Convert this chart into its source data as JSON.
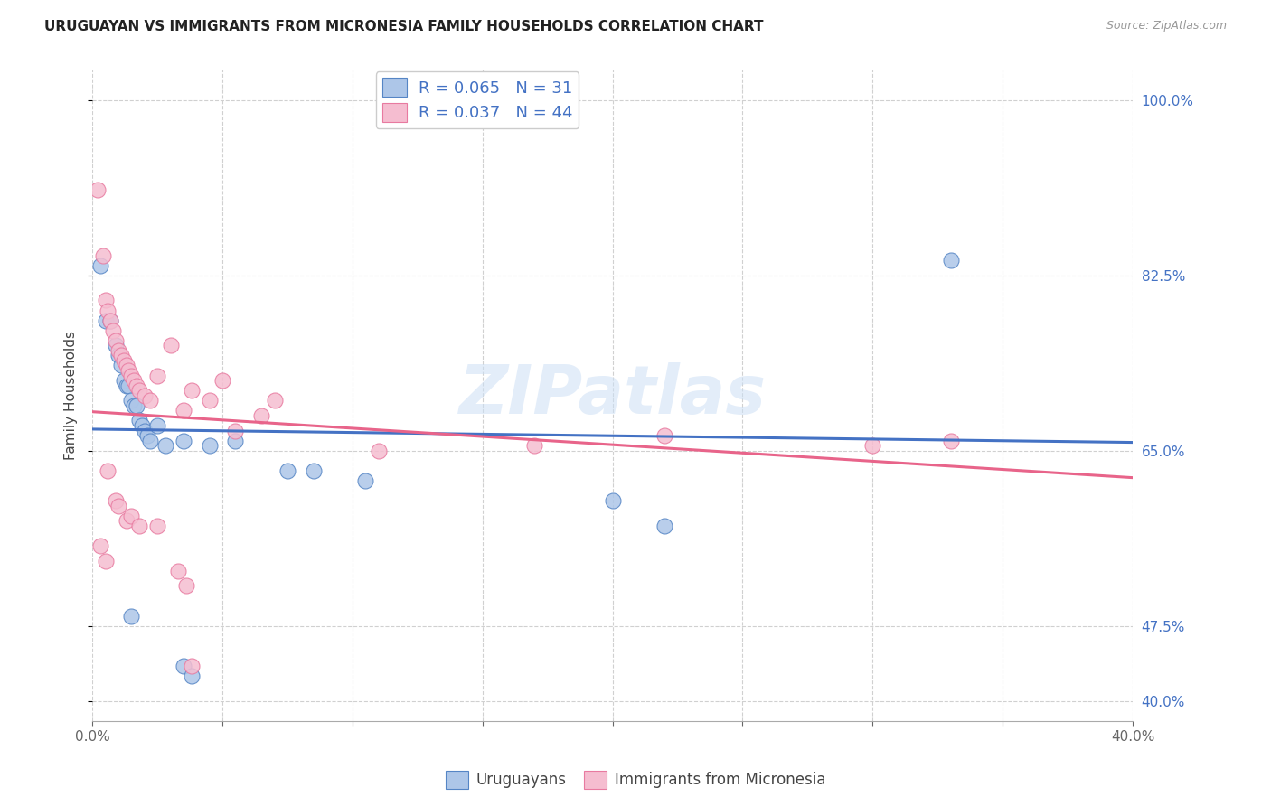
{
  "title": "URUGUAYAN VS IMMIGRANTS FROM MICRONESIA FAMILY HOUSEHOLDS CORRELATION CHART",
  "source": "Source: ZipAtlas.com",
  "ylabel": "Family Households",
  "legend_labels": [
    "Uruguayans",
    "Immigrants from Micronesia"
  ],
  "legend_R": [
    0.065,
    0.037
  ],
  "legend_N": [
    31,
    44
  ],
  "blue_color": "#adc6e8",
  "blue_edge_color": "#5585c5",
  "blue_line_color": "#4472c4",
  "pink_color": "#f5bdd0",
  "pink_edge_color": "#e87aa0",
  "pink_line_color": "#e8648a",
  "blue_scatter": [
    [
      0.3,
      83.5
    ],
    [
      0.5,
      78.0
    ],
    [
      0.7,
      78.0
    ],
    [
      0.9,
      75.5
    ],
    [
      1.0,
      74.5
    ],
    [
      1.1,
      73.5
    ],
    [
      1.2,
      72.0
    ],
    [
      1.3,
      71.5
    ],
    [
      1.4,
      71.5
    ],
    [
      1.5,
      70.0
    ],
    [
      1.6,
      69.5
    ],
    [
      1.7,
      69.5
    ],
    [
      1.8,
      68.0
    ],
    [
      1.9,
      67.5
    ],
    [
      2.0,
      67.0
    ],
    [
      2.1,
      66.5
    ],
    [
      2.2,
      66.0
    ],
    [
      2.5,
      67.5
    ],
    [
      2.8,
      65.5
    ],
    [
      3.5,
      66.0
    ],
    [
      4.5,
      65.5
    ],
    [
      5.5,
      66.0
    ],
    [
      7.5,
      63.0
    ],
    [
      8.5,
      63.0
    ],
    [
      10.5,
      62.0
    ],
    [
      1.5,
      48.5
    ],
    [
      3.5,
      43.5
    ],
    [
      3.8,
      42.5
    ],
    [
      20.0,
      60.0
    ],
    [
      33.0,
      84.0
    ],
    [
      22.0,
      57.5
    ]
  ],
  "pink_scatter": [
    [
      0.2,
      91.0
    ],
    [
      0.4,
      84.5
    ],
    [
      0.5,
      80.0
    ],
    [
      0.6,
      79.0
    ],
    [
      0.7,
      78.0
    ],
    [
      0.8,
      77.0
    ],
    [
      0.9,
      76.0
    ],
    [
      1.0,
      75.0
    ],
    [
      1.1,
      74.5
    ],
    [
      1.2,
      74.0
    ],
    [
      1.3,
      73.5
    ],
    [
      1.4,
      73.0
    ],
    [
      1.5,
      72.5
    ],
    [
      1.6,
      72.0
    ],
    [
      1.7,
      71.5
    ],
    [
      1.8,
      71.0
    ],
    [
      2.0,
      70.5
    ],
    [
      2.2,
      70.0
    ],
    [
      2.5,
      72.5
    ],
    [
      3.0,
      75.5
    ],
    [
      3.5,
      69.0
    ],
    [
      3.8,
      71.0
    ],
    [
      4.5,
      70.0
    ],
    [
      5.0,
      72.0
    ],
    [
      5.5,
      67.0
    ],
    [
      6.5,
      68.5
    ],
    [
      7.0,
      70.0
    ],
    [
      0.6,
      63.0
    ],
    [
      0.9,
      60.0
    ],
    [
      1.0,
      59.5
    ],
    [
      1.3,
      58.0
    ],
    [
      1.5,
      58.5
    ],
    [
      1.8,
      57.5
    ],
    [
      2.5,
      57.5
    ],
    [
      3.3,
      53.0
    ],
    [
      3.6,
      51.5
    ],
    [
      3.8,
      43.5
    ],
    [
      11.0,
      65.0
    ],
    [
      17.0,
      65.5
    ],
    [
      22.0,
      66.5
    ],
    [
      30.0,
      65.5
    ],
    [
      33.0,
      66.0
    ],
    [
      0.3,
      55.5
    ],
    [
      0.5,
      54.0
    ]
  ],
  "xlim": [
    0,
    40
  ],
  "ylim": [
    38,
    103
  ],
  "yticks": [
    40.0,
    47.5,
    65.0,
    82.5,
    100.0
  ],
  "xticks": [
    0.0,
    5.0,
    10.0,
    15.0,
    20.0,
    25.0,
    30.0,
    35.0,
    40.0
  ],
  "xtick_labels": [
    "0.0%",
    "",
    "",
    "",
    "",
    "",
    "",
    "",
    "40.0%"
  ],
  "watermark": "ZIPatlas",
  "background_color": "#ffffff",
  "grid_color": "#d0d0d0",
  "title_color": "#222222",
  "right_axis_color": "#4472c4"
}
